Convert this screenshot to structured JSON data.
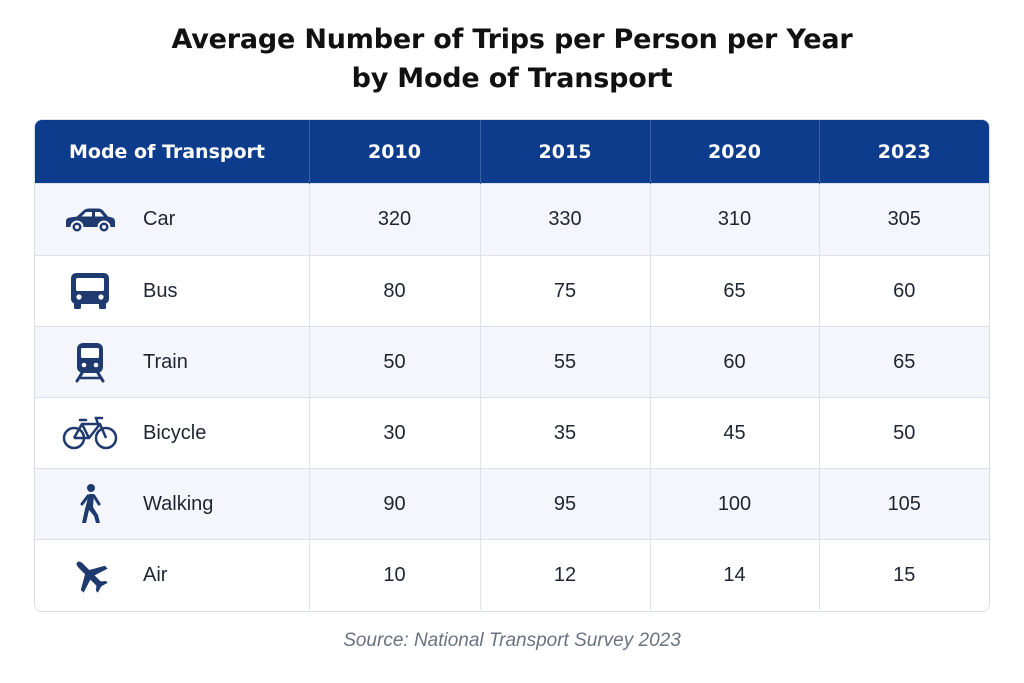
{
  "title_line1": "Average Number of Trips per Person per Year",
  "title_line2": "by Mode of Transport",
  "source": "Source: National Transport Survey 2023",
  "colors": {
    "header_bg": "#0e3c8c",
    "icon": "#1e3a6e",
    "alt_row_bg": "#f4f6fb"
  },
  "chart_data": {
    "type": "table",
    "title": "Average Number of Trips per Person per Year by Mode of Transport",
    "columns": [
      "Mode of Transport",
      "2010",
      "2015",
      "2020",
      "2023"
    ],
    "rows": [
      {
        "icon": "car-icon",
        "mode": "Car",
        "values": [
          "320",
          "330",
          "310",
          "305"
        ]
      },
      {
        "icon": "bus-icon",
        "mode": "Bus",
        "values": [
          "80",
          "75",
          "65",
          "60"
        ]
      },
      {
        "icon": "train-icon",
        "mode": "Train",
        "values": [
          "50",
          "55",
          "60",
          "65"
        ]
      },
      {
        "icon": "bicycle-icon",
        "mode": "Bicycle",
        "values": [
          "30",
          "35",
          "45",
          "50"
        ]
      },
      {
        "icon": "walking-icon",
        "mode": "Walking",
        "values": [
          "90",
          "95",
          "100",
          "105"
        ]
      },
      {
        "icon": "airplane-icon",
        "mode": "Air",
        "values": [
          "10",
          "12",
          "14",
          "15"
        ]
      }
    ]
  }
}
